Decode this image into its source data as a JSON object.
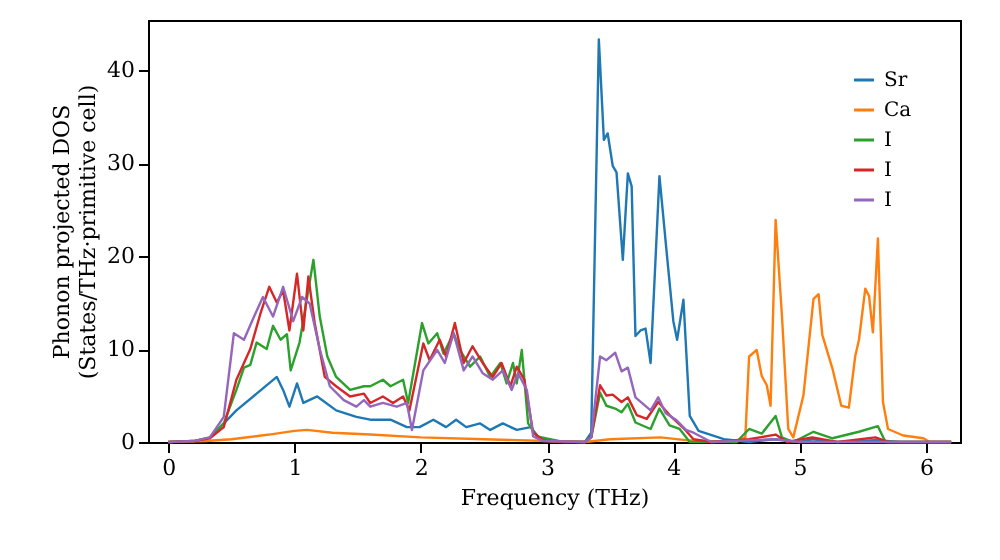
{
  "chart_data": {
    "type": "line",
    "xlabel": "Frequency (THz)",
    "ylabel": "Phonon projected DOS\n(States/THz·primitive cell)",
    "xlim": [
      -0.16,
      6.27
    ],
    "ylim": [
      0,
      45.4
    ],
    "xticks": [
      0,
      1,
      2,
      3,
      4,
      5,
      6
    ],
    "yticks": [
      0,
      10,
      20,
      30,
      40
    ],
    "grid": false,
    "legend": "top right",
    "marker": "none",
    "line_style": "solid",
    "series": [
      {
        "name": "Sr",
        "color": "#1f77b4",
        "x": [
          0.33,
          0.44,
          0.54,
          0.7,
          0.86,
          0.91,
          0.96,
          1.02,
          1.07,
          1.18,
          1.33,
          1.49,
          1.6,
          1.76,
          1.89,
          1.99,
          2.1,
          2.2,
          2.28,
          2.36,
          2.47,
          2.55,
          2.65,
          2.76,
          2.87,
          2.94,
          3.02,
          3.3,
          3.35,
          3.41,
          3.45,
          3.48,
          3.52,
          3.55,
          3.6,
          3.64,
          3.67,
          3.7,
          3.74,
          3.78,
          3.82,
          3.89,
          3.95,
          4.0,
          4.03,
          4.08,
          4.13,
          4.2,
          4.4,
          4.6,
          4.8,
          5.0,
          5.1,
          5.3,
          5.6,
          5.8,
          6.2
        ],
        "values": [
          0.5,
          2,
          3.4,
          5.2,
          7,
          5.6,
          3.8,
          6.3,
          4.2,
          4.9,
          3.4,
          2.7,
          2.4,
          2.4,
          1.6,
          1.6,
          2.4,
          1.6,
          2.4,
          1.6,
          2,
          1.3,
          2,
          1.3,
          1.6,
          0.4,
          0.1,
          0,
          1,
          43.3,
          32.5,
          33.2,
          29.7,
          29,
          19.6,
          28.9,
          27.5,
          11.4,
          12,
          12.2,
          8.5,
          28.6,
          20,
          13,
          11,
          15.3,
          2.8,
          1.2,
          0.3,
          0,
          0.3,
          0,
          0.3,
          0,
          0.2,
          0,
          0
        ]
      },
      {
        "name": "Ca",
        "color": "#ff7f0e",
        "x": [
          0,
          0.3,
          0.5,
          0.8,
          1.0,
          1.1,
          1.3,
          1.6,
          2.0,
          2.5,
          3.0,
          3.3,
          3.5,
          3.9,
          4.1,
          4.5,
          4.57,
          4.6,
          4.66,
          4.7,
          4.74,
          4.77,
          4.81,
          4.86,
          4.91,
          4.95,
          5.03,
          5.11,
          5.15,
          5.18,
          5.26,
          5.33,
          5.39,
          5.44,
          5.47,
          5.52,
          5.55,
          5.58,
          5.62,
          5.66,
          5.7,
          5.82,
          5.98,
          6.03,
          6.2
        ],
        "values": [
          0,
          0.1,
          0.3,
          0.8,
          1.2,
          1.3,
          1,
          0.8,
          0.5,
          0.3,
          0.1,
          0,
          0.3,
          0.5,
          0.2,
          0,
          0.5,
          9.2,
          9.9,
          7.1,
          6.1,
          3.9,
          23.9,
          13.6,
          1.4,
          0.5,
          5,
          15.4,
          15.9,
          11.5,
          7.9,
          3.9,
          3.7,
          9.2,
          11,
          16.5,
          15.7,
          11.8,
          21.9,
          4.3,
          1.4,
          0.7,
          0.4,
          0,
          0
        ]
      },
      {
        "name": "I",
        "color": "#2ca02c",
        "x": [
          0,
          0.2,
          0.33,
          0.44,
          0.54,
          0.6,
          0.65,
          0.7,
          0.78,
          0.83,
          0.89,
          0.94,
          0.97,
          1.04,
          1.15,
          1.2,
          1.26,
          1.33,
          1.44,
          1.55,
          1.6,
          1.7,
          1.76,
          1.86,
          1.9,
          2.01,
          2.06,
          2.13,
          2.18,
          2.26,
          2.31,
          2.39,
          2.47,
          2.55,
          2.63,
          2.68,
          2.73,
          2.76,
          2.8,
          2.85,
          2.92,
          3.13,
          3.3,
          3.35,
          3.42,
          3.47,
          3.54,
          3.59,
          3.64,
          3.7,
          3.82,
          3.89,
          3.97,
          4.05,
          4.13,
          4.5,
          4.6,
          4.7,
          4.81,
          4.86,
          4.95,
          5.11,
          5.26,
          5.47,
          5.62,
          5.68,
          6.2
        ],
        "values": [
          0,
          0.1,
          0.5,
          2,
          5.6,
          8,
          8.3,
          10.7,
          10,
          12.5,
          11,
          11.6,
          7.7,
          10.7,
          19.6,
          13.5,
          9.2,
          7,
          5.6,
          6,
          6,
          6.7,
          6,
          6.7,
          4.2,
          12.8,
          10.6,
          11.7,
          9.5,
          11.7,
          9.9,
          8.1,
          9.2,
          7,
          8.5,
          6.3,
          8.5,
          6.3,
          9.9,
          2,
          0.6,
          0,
          0,
          0.5,
          5.3,
          3.9,
          3.6,
          3.2,
          4.1,
          2.1,
          1.4,
          3.6,
          1.8,
          1.4,
          0,
          0,
          1.4,
          0.9,
          2.8,
          0.5,
          0,
          1.1,
          0.4,
          1.1,
          1.7,
          0,
          0
        ]
      },
      {
        "name": "I",
        "color": "#d62728",
        "x": [
          0,
          0.2,
          0.33,
          0.44,
          0.54,
          0.65,
          0.73,
          0.8,
          0.86,
          0.91,
          0.96,
          1.02,
          1.07,
          1.11,
          1.16,
          1.24,
          1.33,
          1.44,
          1.55,
          1.6,
          1.7,
          1.78,
          1.86,
          1.91,
          2.02,
          2.07,
          2.15,
          2.2,
          2.27,
          2.34,
          2.41,
          2.49,
          2.57,
          2.64,
          2.71,
          2.76,
          2.82,
          2.89,
          2.97,
          3.1,
          3.3,
          3.35,
          3.42,
          3.47,
          3.52,
          3.59,
          3.64,
          3.71,
          3.79,
          3.88,
          3.97,
          4.08,
          4.16,
          4.3,
          4.6,
          4.81,
          4.9,
          5.1,
          5.3,
          5.6,
          5.7,
          6.2
        ],
        "values": [
          0,
          0.1,
          0.4,
          1.6,
          6.7,
          10,
          13.8,
          16.7,
          15,
          16.3,
          12,
          18.1,
          12,
          17.8,
          12.8,
          7,
          6,
          4.9,
          5.2,
          4.2,
          4.9,
          4.2,
          4.9,
          3.4,
          10.6,
          8.8,
          11,
          9.2,
          12.8,
          8.5,
          10.3,
          8.5,
          7,
          8.5,
          6,
          8.1,
          6.7,
          1,
          0.2,
          0,
          0,
          0.5,
          6.1,
          5,
          5.1,
          4.3,
          4.8,
          2.9,
          2.5,
          4.3,
          2.9,
          1.5,
          0.3,
          0,
          0.3,
          0.8,
          0,
          0.5,
          0,
          0.5,
          0,
          0
        ]
      },
      {
        "name": "I",
        "color": "#9467bd",
        "x": [
          0,
          0.2,
          0.33,
          0.44,
          0.52,
          0.6,
          0.68,
          0.75,
          0.83,
          0.91,
          0.99,
          1.06,
          1.12,
          1.2,
          1.28,
          1.39,
          1.49,
          1.55,
          1.6,
          1.7,
          1.81,
          1.89,
          1.93,
          2.02,
          2.13,
          2.19,
          2.26,
          2.34,
          2.41,
          2.49,
          2.57,
          2.65,
          2.72,
          2.77,
          2.84,
          2.89,
          2.97,
          3.3,
          3.35,
          3.42,
          3.47,
          3.54,
          3.59,
          3.64,
          3.7,
          3.76,
          3.82,
          3.88,
          3.94,
          4.02,
          4.1,
          4.16,
          4.3,
          4.8,
          5.0,
          6.2
        ],
        "values": [
          0,
          0.1,
          0.5,
          2.7,
          11.7,
          11,
          13.5,
          15.6,
          13.5,
          16.7,
          13,
          15.6,
          14.9,
          10,
          6,
          4.5,
          3.8,
          4.5,
          3.8,
          4.2,
          3.8,
          4.2,
          1.3,
          7.7,
          9.9,
          8.5,
          11.7,
          7.7,
          9.2,
          7.4,
          6.7,
          7.7,
          5.6,
          7.4,
          5.6,
          0.6,
          0.1,
          0,
          0.5,
          9.2,
          8.8,
          9.6,
          7.6,
          8,
          4.8,
          4.1,
          3.4,
          4.8,
          3.1,
          2.4,
          1.3,
          1,
          0,
          0.3,
          0,
          0
        ]
      }
    ]
  }
}
